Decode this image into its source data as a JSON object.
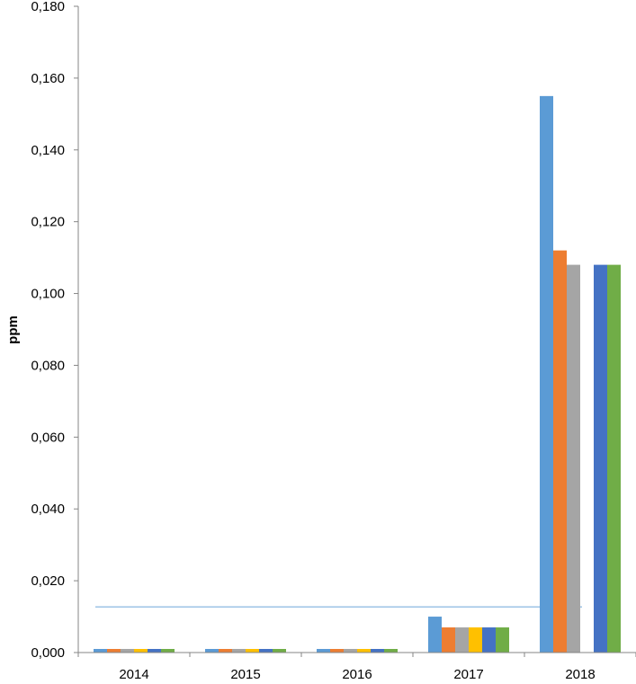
{
  "chart_data": {
    "type": "bar",
    "title": "",
    "xlabel": "",
    "ylabel": "ppm",
    "ylim": [
      0,
      0.18
    ],
    "yticks": [
      "0,000",
      "0,020",
      "0,040",
      "0,060",
      "0,080",
      "0,100",
      "0,120",
      "0,140",
      "0,160",
      "0,180"
    ],
    "ytick_values": [
      0,
      0.02,
      0.04,
      0.06,
      0.08,
      0.1,
      0.12,
      0.14,
      0.16,
      0.18
    ],
    "categories": [
      "2014",
      "2015",
      "2016",
      "2017",
      "2018"
    ],
    "grid": false,
    "legend": "none",
    "series": [
      {
        "color": "#5b9bd5",
        "values": [
          0.001,
          0.001,
          0.001,
          0.01,
          0.155
        ]
      },
      {
        "color": "#ed7d31",
        "values": [
          0.001,
          0.001,
          0.001,
          0.007,
          0.112
        ]
      },
      {
        "color": "#a5a5a5",
        "values": [
          0.001,
          0.001,
          0.001,
          0.007,
          0.108
        ]
      },
      {
        "color": "#ffc000",
        "values": [
          0.001,
          0.001,
          0.001,
          0.007,
          0
        ]
      },
      {
        "color": "#4472c4",
        "values": [
          0.001,
          0.001,
          0.001,
          0.007,
          0.108
        ]
      },
      {
        "color": "#70ad47",
        "values": [
          0.001,
          0.001,
          0.001,
          0.007,
          0.108
        ]
      }
    ],
    "reference_line": {
      "value": 0.0127,
      "color": "#9dc3e6",
      "from_category": "2014",
      "to_category": "2018"
    },
    "axis_color": "#868686"
  }
}
